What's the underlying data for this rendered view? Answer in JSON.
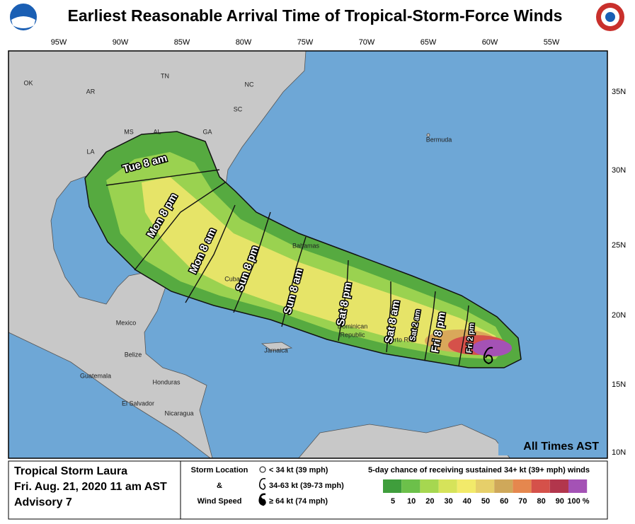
{
  "header": {
    "title": "Earliest Reasonable Arrival Time of Tropical-Storm-Force Winds"
  },
  "map": {
    "lon_labels": [
      "95W",
      "90W",
      "85W",
      "80W",
      "75W",
      "70W",
      "65W",
      "60W",
      "55W"
    ],
    "lat_labels": [
      "35N",
      "30N",
      "25N",
      "20N",
      "15N",
      "10N"
    ],
    "place_labels": [
      "OK",
      "AR",
      "TN",
      "NC",
      "SC",
      "MS",
      "AL",
      "GA",
      "LA",
      "Bermuda",
      "Bahamas",
      "Cuba",
      "Mexico",
      "Belize",
      "Guatemala",
      "Honduras",
      "El Salvador",
      "Nicaragua",
      "Jamaica",
      "Dominican",
      "Republic",
      "Puerto Rico"
    ],
    "time_labels": [
      "Tue 8 am",
      "Mon 8 pm",
      "Mon 8 am",
      "Sun 8 pm",
      "Sun 8 am",
      "Sat 8 pm",
      "Sat 8 am",
      "Sat 2 am",
      "Fri 8 pm",
      "Fri 2 pm"
    ],
    "note": "All Times AST"
  },
  "footer": {
    "storm": "Tropical Storm Laura",
    "issued": "Fri. Aug. 21, 2020  11 am AST",
    "advisory": "Advisory 7",
    "key_title": [
      "Storm Location",
      "&",
      "Wind Speed"
    ],
    "key_items": [
      "< 34 kt (39 mph)",
      "34-63 kt (39-73 mph)",
      "≥ 64 kt (74 mph)"
    ],
    "scale_title": "5-day chance of receiving sustained 34+ kt (39+ mph) winds",
    "scale_labels": [
      "5",
      "10",
      "20",
      "30",
      "40",
      "50",
      "60",
      "70",
      "80",
      "90",
      "100 %"
    ],
    "scale_colors": [
      "#3f9e3c",
      "#6cc04a",
      "#a6d750",
      "#d6e35a",
      "#f2ea6a",
      "#e6cf6a",
      "#cfa85a",
      "#e5874e",
      "#d5514a",
      "#b2364c",
      "#a452b5"
    ]
  }
}
